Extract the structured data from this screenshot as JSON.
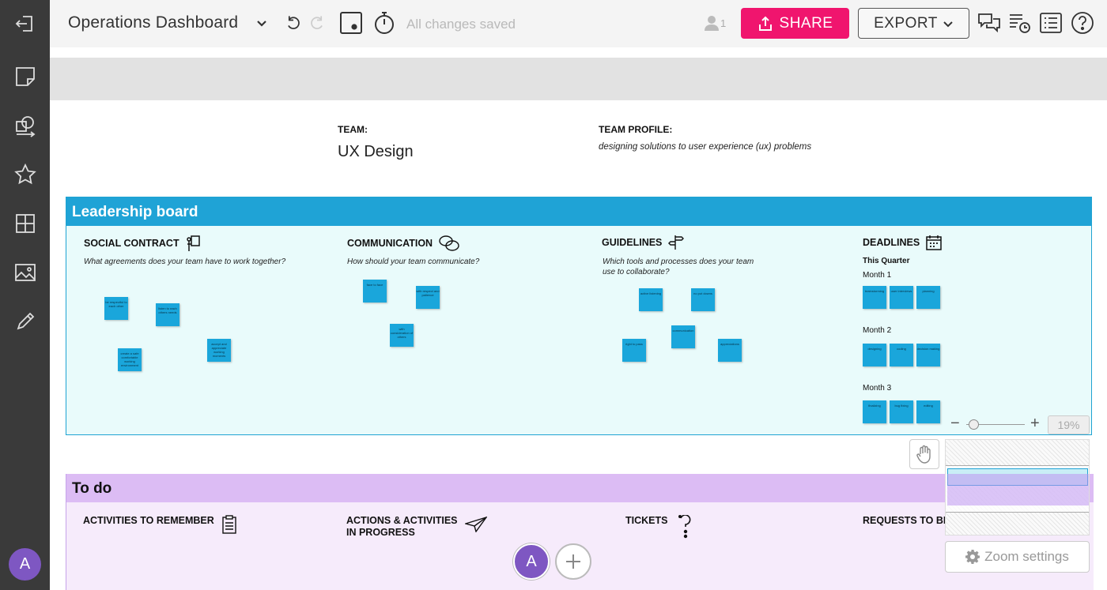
{
  "topbar": {
    "title": "Operations Dashboard",
    "saved_status": "All changes saved",
    "user_count": "1",
    "share_label": "SHARE",
    "export_label": "EXPORT"
  },
  "team": {
    "team_label": "TEAM:",
    "team_name": "UX Design",
    "profile_label": "TEAM PROFILE:",
    "profile_text": "designing solutions to user experience (ux) problems"
  },
  "leadership": {
    "title": "Leadership board",
    "columns": [
      {
        "title": "SOCIAL CONTRACT",
        "question": "What agreements does your team have to work together?",
        "icon": "presenter-board-icon"
      },
      {
        "title": "COMMUNICATION",
        "question": "How should your team communicate?",
        "icon": "chat-bubbles-icon"
      },
      {
        "title": "GUIDELINES",
        "question": "Which tools and processes does your team use to collaborate?",
        "icon": "signpost-icon"
      },
      {
        "title": "DEADLINES",
        "question": "",
        "icon": "calendar-icon"
      }
    ],
    "deadlines": {
      "quarter": "This Quarter",
      "month1": "Month 1",
      "month2": "Month 2",
      "month3": "Month 3"
    },
    "notes": {
      "social": [
        "be respectful to each other",
        "listen to each others needs",
        "create a safe comfortable working environment",
        "accept and appreciate working moments"
      ],
      "communication": [
        "face to face",
        "with respect and patience",
        "with consideration of others"
      ],
      "guidelines": [
        "active listening",
        "no put downs",
        "communication",
        "right to pass",
        "appreciations"
      ],
      "month1": [
        "brainstorming",
        "user interviews",
        "planning"
      ],
      "month2": [
        "designing",
        "coding",
        "decision making"
      ],
      "month3": [
        "finalizing",
        "bug fixing",
        "editing"
      ]
    }
  },
  "zoom": {
    "percent": "19%",
    "minus": "−",
    "plus": "+",
    "settings_label": "Zoom settings"
  },
  "todo": {
    "title": "To do",
    "columns": [
      {
        "title_line1": "ACTIVITIES TO REMEMBER",
        "title_line2": "",
        "icon": "clipboard-icon"
      },
      {
        "title_line1": "ACTIONS & ACTIVITIES",
        "title_line2": "IN PROGRESS",
        "icon": "paper-plane-icon"
      },
      {
        "title_line1": "TICKETS",
        "title_line2": "",
        "icon": "question-dots-icon"
      },
      {
        "title_line1": "REQUESTS TO BE PERFORMED",
        "title_line2": "",
        "icon": "inbox-icon"
      }
    ]
  },
  "collaborators": {
    "avatar_initial": "A"
  },
  "sidebar": {
    "avatar_initial": "A"
  }
}
